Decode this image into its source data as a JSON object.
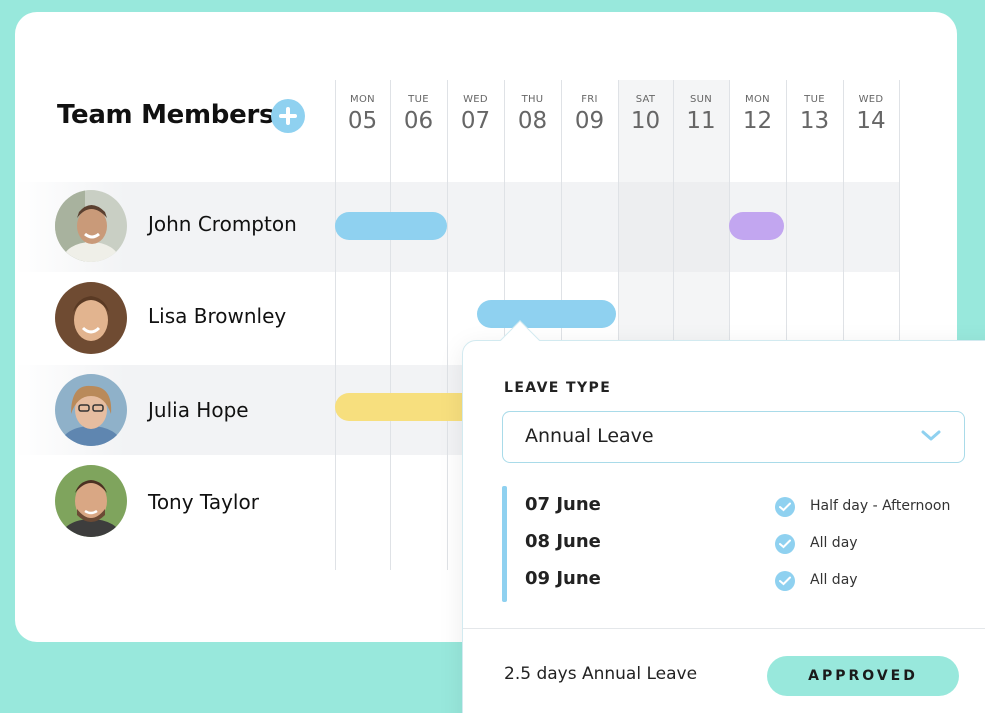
{
  "header": {
    "title": "Team Members",
    "add_icon": "plus-circle-icon"
  },
  "days": [
    {
      "dow": "MON",
      "num": "05",
      "weekend": false
    },
    {
      "dow": "TUE",
      "num": "06",
      "weekend": false
    },
    {
      "dow": "WED",
      "num": "07",
      "weekend": false
    },
    {
      "dow": "THU",
      "num": "08",
      "weekend": false
    },
    {
      "dow": "FRI",
      "num": "09",
      "weekend": false
    },
    {
      "dow": "SAT",
      "num": "10",
      "weekend": true
    },
    {
      "dow": "SUN",
      "num": "11",
      "weekend": true
    },
    {
      "dow": "MON",
      "num": "12",
      "weekend": false
    },
    {
      "dow": "TUE",
      "num": "13",
      "weekend": false
    },
    {
      "dow": "WED",
      "num": "14",
      "weekend": false
    }
  ],
  "members": [
    {
      "name": "John Crompton"
    },
    {
      "name": "Lisa Brownley"
    },
    {
      "name": "Julia Hope"
    },
    {
      "name": "Tony Taylor"
    }
  ],
  "leave_bars": [
    {
      "member": "John Crompton",
      "start": "05",
      "end": "06",
      "color": "#8fd1f0"
    },
    {
      "member": "John Crompton",
      "start": "12",
      "end": "12",
      "color": "#c2a6f0"
    },
    {
      "member": "Lisa Brownley",
      "start": "07",
      "end": "09",
      "color": "#8fd1f0"
    },
    {
      "member": "Julia Hope",
      "start": "05",
      "end": "07",
      "color": "#f7df7e"
    }
  ],
  "popup": {
    "leave_type_label": "LEAVE TYPE",
    "leave_type_value": "Annual Leave",
    "dates": [
      {
        "date": "07 June",
        "detail": "Half day - Afternoon"
      },
      {
        "date": "08 June",
        "detail": "All day"
      },
      {
        "date": "09 June",
        "detail": "All day"
      }
    ],
    "summary": "2.5 days Annual Leave",
    "status": "APPROVED"
  },
  "colors": {
    "background": "#98e8dc",
    "accent_blue": "#8fd1f0",
    "accent_purple": "#c2a6f0",
    "accent_yellow": "#f7df7e",
    "approved_bg": "#98e8dc"
  }
}
